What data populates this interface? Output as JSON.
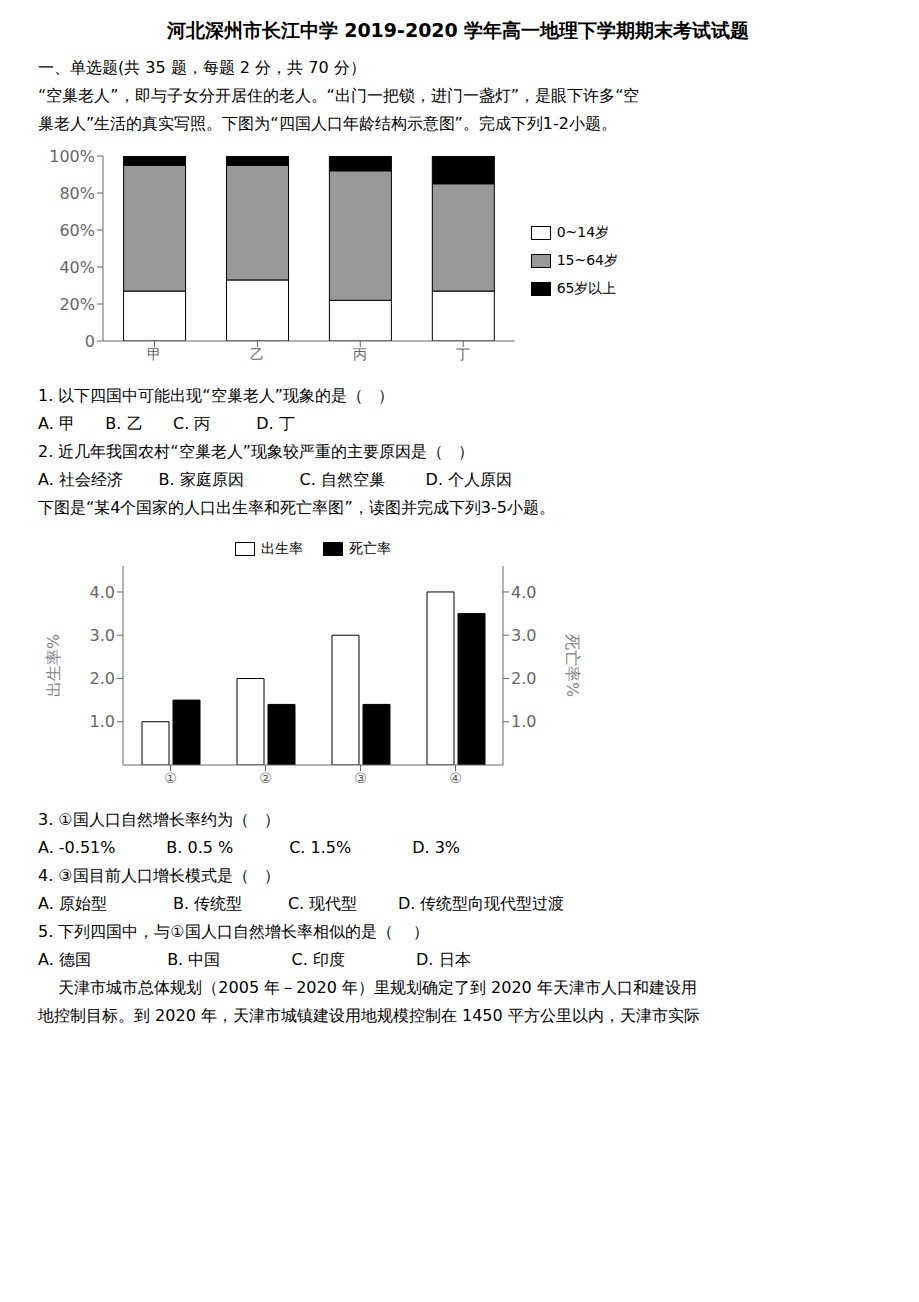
{
  "title": "河北深州市长江中学 2019-2020 学年高一地理下学期期末考试试题",
  "annotations": [
    "一、单选题(共 35 题，每题 2 分，共 70 分）",
    "“空巢老人”，即与子女分开居住的老人。“出门一把锁，进门一盏灯”，是眼下许多“空",
    "巢老人”生活的真实写照。下图为“四国人口年龄结构示意图”。完成下列1-2小题。"
  ],
  "chart_data": [
    {
      "type": "bar",
      "stacked": true,
      "grid": false,
      "legend": "right",
      "categories": [
        "甲",
        "乙",
        "丙",
        "丁"
      ],
      "series": [
        {
          "name": "0~14岁",
          "color": "#FFFFFF",
          "values": [
            27,
            33,
            22,
            27
          ]
        },
        {
          "name": "15~64岁",
          "color": "#999999",
          "values": [
            68,
            62,
            70,
            58
          ]
        },
        {
          "name": "65岁以上",
          "color": "#000000",
          "values": [
            5,
            5,
            8,
            15
          ]
        }
      ],
      "ylim": [
        0,
        100
      ],
      "yticks": [
        0,
        {
          "value": 20,
          "label": "20%"
        },
        {
          "value": 40,
          "label": "40%"
        },
        {
          "value": 60,
          "label": "60%"
        },
        {
          "value": 80,
          "label": "80%"
        },
        {
          "value": 100,
          "label": "100%"
        }
      ],
      "annotations": [
        "1. 以下四国中可能出现“空巢老人”现象的是（   ）",
        "A. 甲      B. 乙      C. 丙         D. 丁",
        "2. 近几年我国农村“空巢老人”现象较严重的主要原因是（   ）",
        "A. 社会经济       B. 家庭原因           C. 自然空巢        D. 个人原因",
        "下图是“某4个国家的人口出生率和死亡率图”，读图并完成下列3-5小题。"
      ]
    },
    {
      "type": "bar",
      "stacked": false,
      "grid": false,
      "legend": "top",
      "categories": [
        "①",
        "②",
        "③",
        "④"
      ],
      "series": [
        {
          "name": "出生率",
          "color": "#FFFFFF",
          "values": [
            1.0,
            2.0,
            3.0,
            4.0
          ]
        },
        {
          "name": "死亡率",
          "color": "#000000",
          "values": [
            1.5,
            1.4,
            1.4,
            3.5
          ],
          "axis": "y2"
        }
      ],
      "ylabel": "出生率%",
      "y2label": "死亡率%",
      "ylim": [
        0,
        4.6
      ],
      "yticks": [
        {
          "value": 1.0,
          "label": "1.0"
        },
        {
          "value": 2.0,
          "label": "2.0"
        },
        {
          "value": 3.0,
          "label": "3.0"
        },
        {
          "value": 4.0,
          "label": "4.0"
        }
      ],
      "y2lim": [
        0,
        4.6
      ],
      "y2ticks": [
        {
          "value": 1.0,
          "label": "1.0"
        },
        {
          "value": 2.0,
          "label": "2.0"
        },
        {
          "value": 3.0,
          "label": "3.0"
        },
        {
          "value": 4.0,
          "label": "4.0"
        }
      ],
      "annotations": [
        "3. ①国人口自然增长率约为（   ）",
        "A. -0.51%          B. 0.5 %           C. 1.5%            D. 3%",
        "4. ③国目前人口增长模式是（   ）",
        "A. 原始型             B. 传统型         C. 现代型        D. 传统型向现代型过渡",
        "5. 下列四国中，与①国人口自然增长率相似的是（    ）",
        "A. 德国               B. 中国              C. 印度              D. 日本",
        "    天津市城市总体规划（2005 年－2020 年）里规划确定了到 2020 年天津市人口和建设用",
        "地控制目标。到 2020 年，天津市城镇建设用地规模控制在 1450 平方公里以内，天津市实际"
      ]
    }
  ]
}
